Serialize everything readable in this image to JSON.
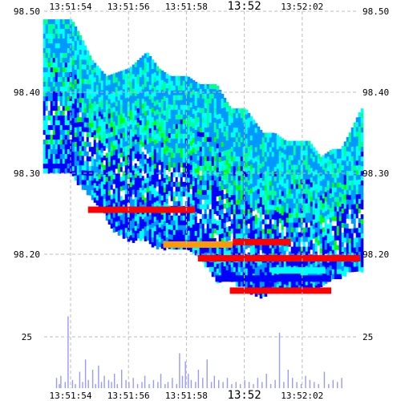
{
  "chart_data": [
    {
      "type": "heatmap",
      "title": "",
      "xlabel": "",
      "ylabel": "",
      "x_ticks": [
        "13:51:54",
        "13:51:56",
        "13:51:58",
        "13:52",
        "13:52:02"
      ],
      "x_range_seconds": [
        0,
        10
      ],
      "y_ticks": [
        "98.50",
        "98.40",
        "98.30",
        "98.20"
      ],
      "ylim": [
        98.14,
        98.5
      ],
      "grid": true,
      "color_scale": [
        "#0000ff",
        "#0099ff",
        "#00ffff",
        "#00ff99",
        "#00ff00",
        "#ffff00",
        "#ff9900",
        "#ff0000"
      ],
      "upper_band_edge": {
        "x_seconds": [
          0,
          0.3,
          0.7,
          1.2,
          2.0,
          2.6,
          3.0,
          3.4,
          3.6,
          4.0,
          4.4,
          5.0,
          5.5,
          6.0,
          6.6,
          7.0,
          7.4,
          7.8,
          8.2,
          8.6,
          9.0,
          9.3,
          9.6,
          10.0
        ],
        "price": [
          98.49,
          98.47,
          98.44,
          98.42,
          98.43,
          98.45,
          98.43,
          98.42,
          98.42,
          98.42,
          98.41,
          98.41,
          98.38,
          98.38,
          98.35,
          98.35,
          98.34,
          98.34,
          98.34,
          98.32,
          98.33,
          98.33,
          98.35,
          98.38
        ]
      },
      "lower_band_edge": {
        "x_seconds": [
          0,
          0.5,
          1.0,
          1.5,
          2.0,
          2.5,
          3.0,
          3.5,
          4.0,
          4.4,
          5.0,
          5.5,
          6.0,
          6.5,
          7.0,
          7.5,
          8.0,
          8.5,
          9.0,
          9.5,
          10.0
        ],
        "price": [
          98.3,
          98.28,
          98.26,
          98.23,
          98.22,
          98.22,
          98.21,
          98.21,
          98.21,
          98.2,
          98.17,
          98.17,
          98.16,
          98.15,
          98.16,
          98.16,
          98.16,
          98.16,
          98.17,
          98.18,
          98.18
        ]
      },
      "hot_levels": [
        {
          "price": 98.255,
          "x_from_seconds": 0.6,
          "x_to_seconds": 4.3,
          "color": "#ff0000"
        },
        {
          "price": 98.215,
          "x_from_seconds": 5.6,
          "x_to_seconds": 7.6,
          "color": "#ff0000"
        },
        {
          "price": 98.212,
          "x_from_seconds": 3.2,
          "x_to_seconds": 5.6,
          "color": "#ff9900"
        },
        {
          "price": 98.195,
          "x_from_seconds": 4.4,
          "x_to_seconds": 10.0,
          "color": "#ff0000"
        },
        {
          "price": 98.18,
          "x_from_seconds": 7.0,
          "x_to_seconds": 8.8,
          "color": "#00ffff"
        },
        {
          "price": 98.17,
          "x_from_seconds": 5.0,
          "x_to_seconds": 9.0,
          "color": "#0000ff"
        },
        {
          "price": 98.155,
          "x_from_seconds": 5.5,
          "x_to_seconds": 9.0,
          "color": "#ff0000"
        }
      ]
    },
    {
      "type": "bar",
      "title": "",
      "xlabel": "",
      "ylabel": "",
      "x_ticks": [
        "13:51:54",
        "13:51:56",
        "13:51:58",
        "13:52",
        "13:52:02"
      ],
      "y_ticks": [
        "25"
      ],
      "ylim": [
        0,
        43
      ],
      "color": "#9999ff",
      "x_seconds": [
        0.05,
        0.15,
        0.2,
        0.35,
        0.45,
        0.6,
        0.7,
        0.85,
        0.95,
        1.05,
        1.15,
        1.3,
        1.4,
        1.5,
        1.6,
        1.7,
        1.85,
        1.95,
        2.05,
        2.15,
        2.3,
        2.45,
        2.55,
        2.7,
        2.85,
        3.0,
        3.1,
        3.25,
        3.4,
        3.55,
        3.65,
        3.8,
        3.9,
        4.05,
        4.2,
        4.3,
        4.4,
        4.5,
        4.6,
        4.7,
        4.85,
        4.95,
        5.1,
        5.25,
        5.4,
        5.5,
        5.65,
        5.8,
        5.95,
        6.1,
        6.25,
        6.4,
        6.55,
        6.7,
        6.85,
        7.0,
        7.15,
        7.3,
        7.45,
        7.6,
        7.75,
        7.9,
        8.05,
        8.2,
        8.35,
        8.5,
        8.65,
        8.8,
        8.95,
        9.1,
        9.3,
        9.45,
        9.6,
        9.75,
        9.9
      ],
      "values": [
        5,
        2,
        6,
        3,
        35,
        4,
        2,
        8,
        3,
        14,
        4,
        9,
        2,
        11,
        3,
        6,
        4,
        3,
        7,
        2,
        9,
        4,
        3,
        5,
        2,
        3,
        6,
        2,
        4,
        3,
        7,
        2,
        3,
        5,
        2,
        17,
        6,
        13,
        7,
        4,
        3,
        9,
        5,
        14,
        3,
        6,
        4,
        3,
        5,
        2,
        3,
        2,
        4,
        3,
        2,
        5,
        3,
        7,
        2,
        4,
        27,
        3,
        9,
        5,
        3,
        2,
        6,
        4,
        3,
        2,
        8,
        2,
        4,
        3,
        5
      ]
    }
  ]
}
